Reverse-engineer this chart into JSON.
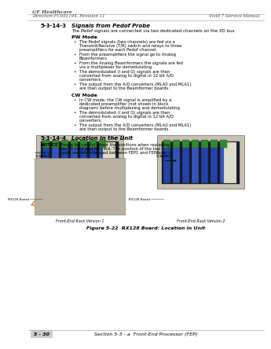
{
  "bg_color": "#ffffff",
  "header_line1": "GE Healthcare",
  "header_line2": "Direction FC091194, Revision 11",
  "header_right": "Vivid 7 Service Manual",
  "section_num": "5-3-14-3",
  "section_title": "Signals from Pedof Probe",
  "section_intro": "The Pedof signals are connected via two dedicated channels on the XD bus",
  "pw_mode_title": "PW Mode",
  "pw_bullets": [
    "The Pedof signals (two channels) are fed via a Transmit/Receive (T/R) switch and relays to three preamplifiers for each Pedof channel.",
    "From the preamplifiers the signal go to Analog Beamformers.",
    "From the Analog Beamformers the signals are fed via a multiplexer for demodulating.",
    "The demodulated (I and Q) signals are then converted from analog to digital in 12 bit A/D converters.",
    "The output from the A/D converters (MLA0 and MLA1) are then output to the Beamformer boards."
  ],
  "cw_mode_title": "CW Mode",
  "cw_bullets": [
    "In CW mode, the CW signal is amplified by a dedicated preamplifier (not shown in block diagram) before multiplexing and demodulating.",
    "The demodulated (I and Q) signals are then converted from analog to digital in 12 bit A/D converters.",
    "The output from the A/D converters (MLA0 and MLA1) are then output to the Beamformer boards."
  ],
  "section2_num": "5-3-14-4",
  "section2_title": "Location in the Unit",
  "notice_text": "Please be careful about the positions when replacing the TX card and RX card. The position of the two cards are interchanged between FEP1 and FEP2.",
  "fig_caption": "Figure 5-22  RX128 Board: Location in Unit",
  "img1_label_top": "FRONT OF\nSCANNER",
  "img1_label_board": "RX128 Board",
  "img1_caption": "Front-End Rack Version 1",
  "img2_label_top": "FRONT OF\nSCANNER",
  "img2_label_board": "RX128 Board",
  "img2_caption": "Front-End Rack Version 2",
  "footer_left": "5 - 30",
  "footer_center": "Section 5-3 - a  Front-End Processor (FEP)",
  "header_color": "#444444",
  "text_color": "#000000",
  "bullet_color": "#000000"
}
